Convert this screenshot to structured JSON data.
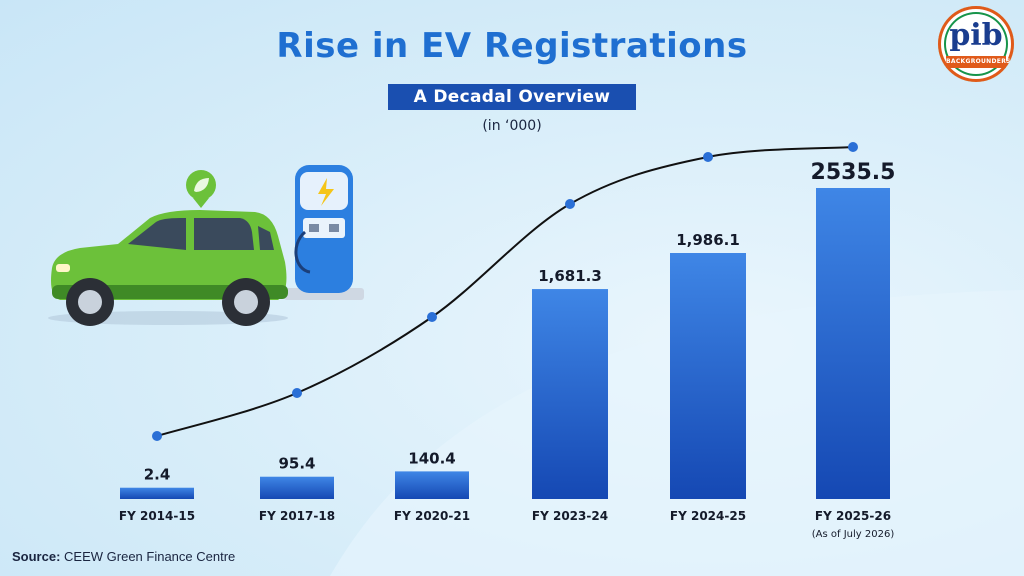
{
  "header": {
    "title": "Rise in EV Registrations",
    "subtitle": "A Decadal Overview",
    "unit": "(in ‘000)"
  },
  "logo": {
    "text": "pib",
    "band_text": "BACKGROUNDERS"
  },
  "source": {
    "label": "Source:",
    "text": "CEEW Green Finance Centre"
  },
  "colors": {
    "title": "#1f6fd1",
    "subtitle_bg": "#1a4fb0",
    "bar_top": "#3f86e6",
    "bar_bottom": "#1548b3",
    "curve": "#111111",
    "dot": "#2a6fd6",
    "car": "#6cc13a",
    "charger": "#2c7fe0"
  },
  "chart_data": {
    "type": "bar",
    "title": "Rise in EV Registrations",
    "subtitle": "A Decadal Overview",
    "unit": "(in ‘000)",
    "categories": [
      "FY 2014-15",
      "FY 2017-18",
      "FY 2020-21",
      "FY 2023-24",
      "FY 2024-25",
      "FY 2025-26"
    ],
    "category_notes": [
      "",
      "",
      "",
      "",
      "",
      "(As of July 2026)"
    ],
    "values": [
      2.4,
      95.4,
      140.4,
      1681.3,
      1986.1,
      2535.5
    ],
    "value_labels": [
      "2.4",
      "95.4",
      "140.4",
      "1,681.3",
      "1,986.1",
      "2535.5"
    ],
    "trend_line": true,
    "ylim": [
      0,
      2535.5
    ],
    "grid": false,
    "legend": "none"
  }
}
